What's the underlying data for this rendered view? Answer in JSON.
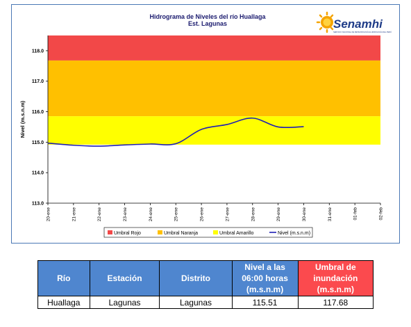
{
  "chart_data": {
    "type": "line",
    "title": "Hidrograma de Niveles del río Huallaga",
    "subtitle": "Est. Lagunas",
    "ylabel": "Nivel (m.s.n.m)",
    "ylim": [
      113.0,
      118.5
    ],
    "yticks": [
      "113.0",
      "114.0",
      "115.0",
      "116.0",
      "117.0",
      "118.0"
    ],
    "categories": [
      "20-ene",
      "21-ene",
      "22-ene",
      "23-ene",
      "24-ene",
      "25-ene",
      "26-ene",
      "27-ene",
      "28-ene",
      "29-ene",
      "30-ene",
      "31-ene",
      "01-feb",
      "02-feb"
    ],
    "bands": [
      {
        "name": "Umbral Rojo",
        "from": 117.68,
        "to": 118.5,
        "color": "#f24848"
      },
      {
        "name": "Umbral Naranja",
        "from": 115.85,
        "to": 117.68,
        "color": "#ffc000"
      },
      {
        "name": "Umbral Amarillo",
        "from": 114.92,
        "to": 115.85,
        "color": "#ffff00"
      }
    ],
    "series": [
      {
        "name": "Nivel (m.s.n.m)",
        "color": "#1f1fb4",
        "x": [
          0,
          1,
          2,
          3,
          4,
          5,
          6,
          7,
          8,
          9,
          10
        ],
        "values": [
          114.97,
          114.9,
          114.87,
          114.91,
          114.94,
          114.95,
          115.42,
          115.58,
          115.79,
          115.5,
          115.51
        ]
      }
    ],
    "grid": false,
    "legend_position": "bottom"
  },
  "logo": {
    "text": "Senamhi",
    "tagline": "SERVICIO NACIONAL DE METEOROLOGÍA E HIDROLOGÍA DEL PERÚ"
  },
  "table": {
    "headers": [
      "Río",
      "Estación",
      "Distrito",
      "Nivel a las 06:00 horas (m.s.n.m)",
      "Umbral de inundación (m.s.n.m)"
    ],
    "row": [
      "Huallaga",
      "Lagunas",
      "Lagunas",
      "115.51",
      "117.68"
    ]
  }
}
